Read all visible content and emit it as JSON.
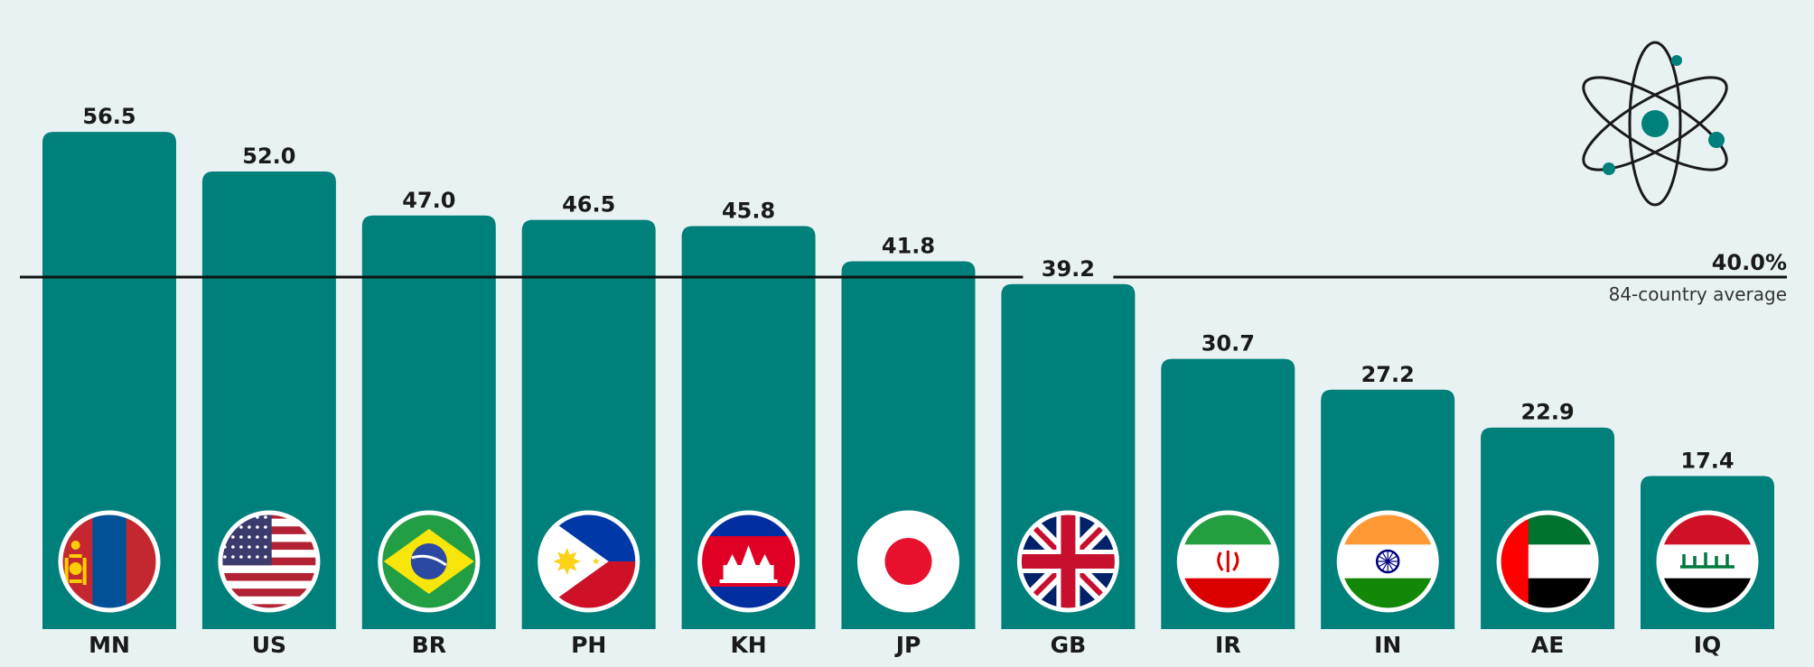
{
  "chart_data": {
    "type": "bar",
    "categories": [
      "MN",
      "US",
      "BR",
      "PH",
      "KH",
      "JP",
      "GB",
      "IR",
      "IN",
      "AE",
      "IQ"
    ],
    "values": [
      56.5,
      52.0,
      47.0,
      46.5,
      45.8,
      41.8,
      39.2,
      30.7,
      27.2,
      22.9,
      17.4
    ],
    "value_labels": [
      "56.5",
      "52.0",
      "47.0",
      "46.5",
      "45.8",
      "41.8",
      "39.2",
      "30.7",
      "27.2",
      "22.9",
      "17.4"
    ],
    "flags": [
      "flag-mongolia-icon",
      "flag-united-states-icon",
      "flag-brazil-icon",
      "flag-philippines-icon",
      "flag-cambodia-icon",
      "flag-japan-icon",
      "flag-united-kingdom-icon",
      "flag-iran-icon",
      "flag-india-icon",
      "flag-uae-icon",
      "flag-iraq-icon"
    ],
    "reference_line": {
      "value": 40.0,
      "value_label": "40.0%",
      "label": "84-country average"
    },
    "ylim": [
      0,
      60
    ],
    "grid": false,
    "bar_color": "#00807a",
    "background": "#e9f2f3",
    "decoration": "atom-icon"
  }
}
